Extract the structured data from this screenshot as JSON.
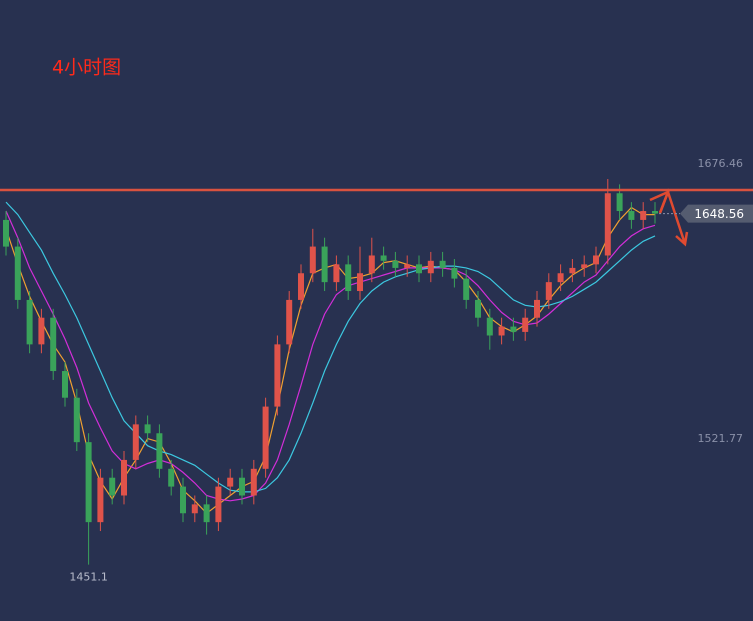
{
  "chart_data": {
    "type": "candlestick",
    "title": "4小时图",
    "ylim": [
      1419.4,
      1768.7
    ],
    "yticks": [
      1676.46,
      1521.77
    ],
    "up_color": "#e0534a",
    "down_color": "#3aa35a",
    "level": 1661.8,
    "level_color": "#d9523f",
    "candles": [
      [
        1645,
        1650,
        1625,
        1630
      ],
      [
        1630,
        1635,
        1595,
        1600
      ],
      [
        1600,
        1605,
        1570,
        1575
      ],
      [
        1575,
        1595,
        1570,
        1590
      ],
      [
        1590,
        1595,
        1555,
        1560
      ],
      [
        1560,
        1565,
        1540,
        1545
      ],
      [
        1545,
        1550,
        1515,
        1520
      ],
      [
        1520,
        1525,
        1451.1,
        1475
      ],
      [
        1475,
        1505,
        1470,
        1500
      ],
      [
        1500,
        1505,
        1485,
        1490
      ],
      [
        1490,
        1515,
        1485,
        1510
      ],
      [
        1510,
        1535,
        1505,
        1530
      ],
      [
        1530,
        1535,
        1520,
        1525
      ],
      [
        1525,
        1530,
        1500,
        1505
      ],
      [
        1505,
        1510,
        1490,
        1495
      ],
      [
        1495,
        1500,
        1475,
        1480
      ],
      [
        1480,
        1490,
        1475,
        1485
      ],
      [
        1485,
        1490,
        1468,
        1475
      ],
      [
        1475,
        1500,
        1470,
        1495
      ],
      [
        1495,
        1505,
        1490,
        1500
      ],
      [
        1500,
        1505,
        1485,
        1490
      ],
      [
        1490,
        1510,
        1485,
        1505
      ],
      [
        1505,
        1545,
        1500,
        1540
      ],
      [
        1540,
        1580,
        1535,
        1575
      ],
      [
        1575,
        1605,
        1570,
        1600
      ],
      [
        1600,
        1620,
        1595,
        1615
      ],
      [
        1615,
        1640,
        1610,
        1630
      ],
      [
        1630,
        1635,
        1605,
        1610
      ],
      [
        1610,
        1625,
        1605,
        1620
      ],
      [
        1620,
        1625,
        1600,
        1605
      ],
      [
        1605,
        1630,
        1600,
        1615
      ],
      [
        1615,
        1635,
        1610,
        1625
      ],
      [
        1625,
        1630,
        1617,
        1622
      ],
      [
        1622,
        1627,
        1613,
        1618
      ],
      [
        1618,
        1625,
        1613,
        1620
      ],
      [
        1620,
        1625,
        1610,
        1615
      ],
      [
        1615,
        1627,
        1610,
        1622
      ],
      [
        1622,
        1627,
        1613,
        1618
      ],
      [
        1618,
        1623,
        1607,
        1612
      ],
      [
        1612,
        1617,
        1595,
        1600
      ],
      [
        1600,
        1605,
        1585,
        1590
      ],
      [
        1590,
        1595,
        1572,
        1580
      ],
      [
        1580,
        1590,
        1575,
        1585
      ],
      [
        1585,
        1590,
        1577,
        1582
      ],
      [
        1582,
        1595,
        1577,
        1590
      ],
      [
        1590,
        1605,
        1585,
        1600
      ],
      [
        1600,
        1615,
        1595,
        1610
      ],
      [
        1610,
        1620,
        1605,
        1615
      ],
      [
        1615,
        1623,
        1610,
        1618
      ],
      [
        1618,
        1625,
        1613,
        1620
      ],
      [
        1620,
        1630,
        1615,
        1625
      ],
      [
        1625,
        1668,
        1620,
        1660
      ],
      [
        1660,
        1665,
        1645,
        1650
      ],
      [
        1650,
        1655,
        1640,
        1645
      ],
      [
        1645,
        1655,
        1640,
        1650
      ],
      [
        1650,
        1655,
        1643,
        1648.56
      ]
    ],
    "series": [
      {
        "color": "#f0a030",
        "values": [
          1640,
          1620,
          1602,
          1588,
          1575,
          1565,
          1542,
          1513,
          1498,
          1488,
          1500,
          1510,
          1522,
          1520,
          1508,
          1493,
          1487,
          1480,
          1485,
          1490,
          1495,
          1498,
          1512,
          1540,
          1572,
          1597,
          1615,
          1618,
          1620,
          1612,
          1613,
          1615,
          1621,
          1622,
          1620,
          1618,
          1619,
          1618,
          1617,
          1610,
          1601,
          1590,
          1585,
          1582,
          1586,
          1591,
          1600,
          1608,
          1614,
          1618,
          1621,
          1635,
          1645,
          1652,
          1648,
          1648
        ]
      },
      {
        "color": "#d22ed8",
        "values": [
          1650,
          1635,
          1618,
          1605,
          1592,
          1578,
          1562,
          1542,
          1528,
          1515,
          1508,
          1505,
          1508,
          1510,
          1508,
          1503,
          1497,
          1490,
          1488,
          1487,
          1488,
          1490,
          1497,
          1510,
          1530,
          1552,
          1575,
          1592,
          1603,
          1608,
          1610,
          1612,
          1614,
          1616,
          1618,
          1618,
          1618,
          1618,
          1617,
          1614,
          1608,
          1600,
          1593,
          1588,
          1586,
          1587,
          1592,
          1598,
          1604,
          1610,
          1614,
          1622,
          1630,
          1636,
          1640,
          1642
        ]
      },
      {
        "color": "#3cc8e0",
        "values": [
          1655,
          1648,
          1638,
          1628,
          1615,
          1603,
          1590,
          1575,
          1560,
          1545,
          1532,
          1525,
          1518,
          1515,
          1513,
          1510,
          1507,
          1502,
          1497,
          1493,
          1492,
          1492,
          1494,
          1500,
          1510,
          1525,
          1542,
          1560,
          1575,
          1588,
          1598,
          1605,
          1610,
          1613,
          1615,
          1617,
          1618,
          1619,
          1619,
          1618,
          1616,
          1612,
          1606,
          1600,
          1597,
          1596,
          1597,
          1599,
          1602,
          1606,
          1610,
          1616,
          1622,
          1628,
          1633,
          1636
        ]
      }
    ]
  }
}
